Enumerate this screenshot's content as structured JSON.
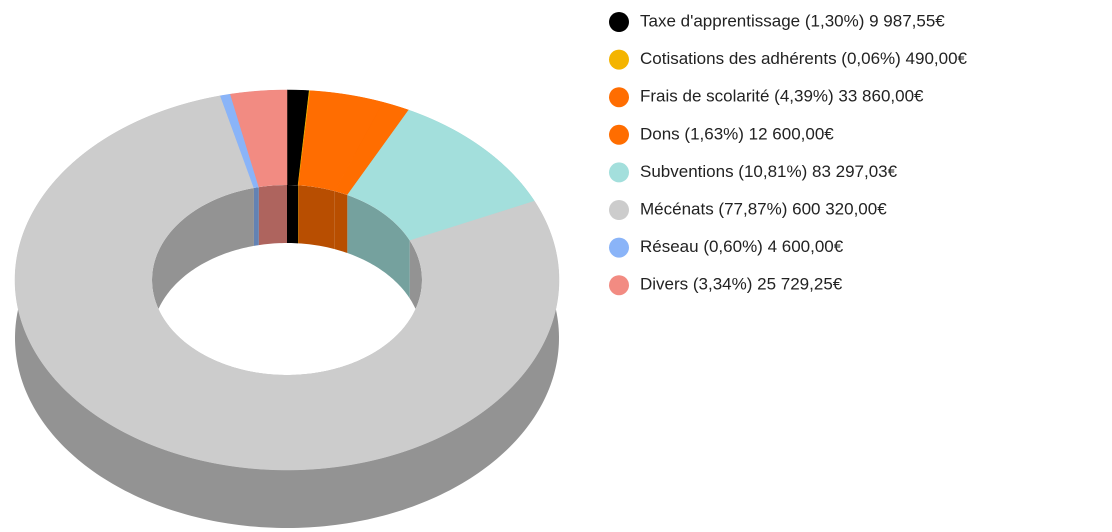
{
  "chart_data": {
    "type": "pie3d_donut",
    "categories": [
      "Taxe d'apprentissage (1,30%) 9 987,55€",
      "Cotisations des adhérents  (0,06%) 490,00€",
      "Frais de  scolarité (4,39%) 33 860,00€",
      "Dons (1,63%) 12 600,00€",
      "Subventions (10,81%) 83 297,03€",
      "Mécénats (77,87%) 600 320,00€",
      "Réseau (0,60%) 4 600,00€",
      "Divers (3,34%) 25 729,25€"
    ],
    "values": [
      1.3,
      0.06,
      4.39,
      1.63,
      10.81,
      77.87,
      0.6,
      3.34
    ],
    "colors": [
      "#000000",
      "#f4b400",
      "#ff6d01",
      "#ff6d00",
      "#a3dfdc",
      "#cccccc",
      "#8ab4f8",
      "#f28b82"
    ],
    "legend": "right"
  }
}
